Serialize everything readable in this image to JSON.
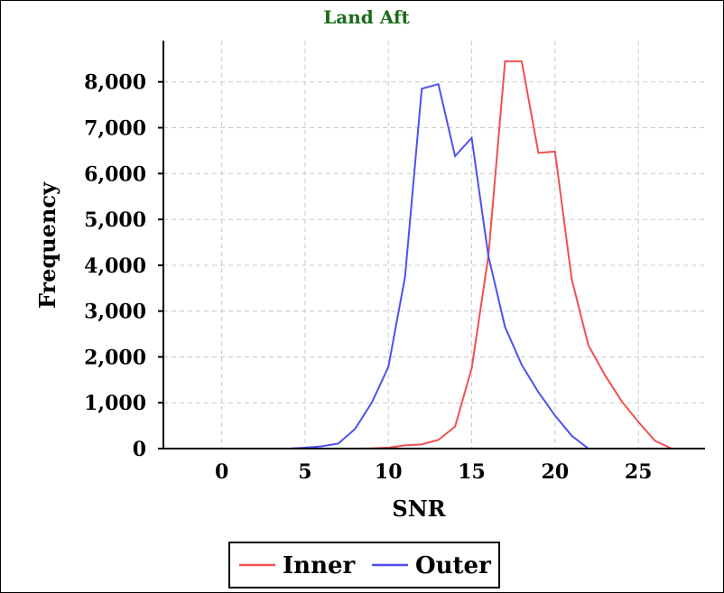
{
  "chart_data": {
    "type": "line",
    "title": "Land Aft",
    "xlabel": "SNR",
    "ylabel": "Frequency",
    "xlim": [
      -3.5,
      29
    ],
    "ylim": [
      0,
      8900
    ],
    "xticks": [
      0,
      5,
      10,
      15,
      20,
      25
    ],
    "yticks": [
      0,
      1000,
      2000,
      3000,
      4000,
      5000,
      6000,
      7000,
      8000
    ],
    "xtick_labels": [
      "0",
      "5",
      "10",
      "15",
      "20",
      "25"
    ],
    "ytick_labels": [
      "0",
      "1,000",
      "2,000",
      "3,000",
      "4,000",
      "5,000",
      "6,000",
      "7,000",
      "8,000"
    ],
    "grid": true,
    "legend_position": "bottom-center",
    "series": [
      {
        "name": "Inner",
        "color": "#f05050",
        "x": [
          -2,
          -1,
          0,
          1,
          2,
          3,
          4,
          5,
          6,
          7,
          8,
          9,
          10,
          11,
          12,
          13,
          14,
          15,
          16,
          17,
          18,
          19,
          20,
          21,
          22,
          23,
          24,
          25,
          26,
          27
        ],
        "y": [
          0,
          0,
          0,
          0,
          0,
          0,
          0,
          0,
          0,
          0,
          0,
          5,
          20,
          70,
          90,
          190,
          480,
          1750,
          4200,
          8450,
          8450,
          6450,
          6480,
          3700,
          2250,
          1600,
          1030,
          580,
          170,
          0
        ]
      },
      {
        "name": "Outer",
        "color": "#5050f0",
        "x": [
          -2,
          -1,
          0,
          1,
          2,
          3,
          4,
          5,
          6,
          7,
          8,
          9,
          10,
          11,
          12,
          13,
          14,
          15,
          16,
          17,
          18,
          19,
          20,
          21,
          22,
          23
        ],
        "y": [
          0,
          0,
          0,
          0,
          0,
          0,
          0,
          20,
          50,
          110,
          430,
          1000,
          1780,
          3750,
          7850,
          7950,
          6380,
          6780,
          4200,
          2650,
          1830,
          1230,
          720,
          280,
          0,
          0
        ]
      }
    ]
  }
}
